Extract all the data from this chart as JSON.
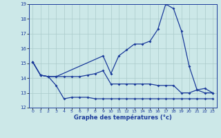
{
  "xlabel": "Graphe des températures (°c)",
  "xlim": [
    -0.5,
    23.5
  ],
  "ylim": [
    12,
    19
  ],
  "yticks": [
    12,
    13,
    14,
    15,
    16,
    17,
    18,
    19
  ],
  "xticks": [
    0,
    1,
    2,
    3,
    4,
    5,
    6,
    7,
    8,
    9,
    10,
    11,
    12,
    13,
    14,
    15,
    16,
    17,
    18,
    19,
    20,
    21,
    22,
    23
  ],
  "bg_color": "#cce8e8",
  "line_color": "#1a3a9a",
  "grid_color": "#aacaca",
  "line1_x": [
    0,
    1,
    2,
    3,
    4,
    5,
    6,
    7,
    8,
    9,
    10,
    11,
    12,
    13,
    14,
    15,
    16,
    17,
    18,
    19,
    20,
    21,
    22,
    23
  ],
  "line1_y": [
    15.1,
    14.2,
    14.1,
    14.1,
    14.1,
    14.1,
    14.1,
    14.2,
    14.3,
    14.5,
    13.6,
    13.6,
    13.6,
    13.6,
    13.6,
    13.6,
    13.5,
    13.5,
    13.5,
    13.0,
    13.0,
    13.2,
    13.0,
    13.0
  ],
  "line2_x": [
    0,
    1,
    2,
    3,
    4,
    5,
    6,
    7,
    8,
    9,
    10,
    11,
    12,
    13,
    14,
    15,
    16,
    17,
    18,
    19,
    20,
    21,
    22,
    23
  ],
  "line2_y": [
    15.1,
    14.2,
    14.1,
    13.5,
    12.6,
    12.7,
    12.7,
    12.7,
    12.6,
    12.6,
    12.6,
    12.6,
    12.6,
    12.6,
    12.6,
    12.6,
    12.6,
    12.6,
    12.6,
    12.6,
    12.6,
    12.6,
    12.6,
    12.6
  ],
  "line3_x": [
    0,
    1,
    2,
    3,
    9,
    10,
    11,
    12,
    13,
    14,
    15,
    16,
    17,
    18,
    19,
    20,
    21,
    22,
    23
  ],
  "line3_y": [
    15.1,
    14.2,
    14.1,
    14.1,
    15.5,
    14.3,
    15.5,
    15.9,
    16.3,
    16.3,
    16.5,
    17.3,
    19.0,
    18.7,
    17.2,
    14.8,
    13.2,
    13.3,
    13.0
  ]
}
